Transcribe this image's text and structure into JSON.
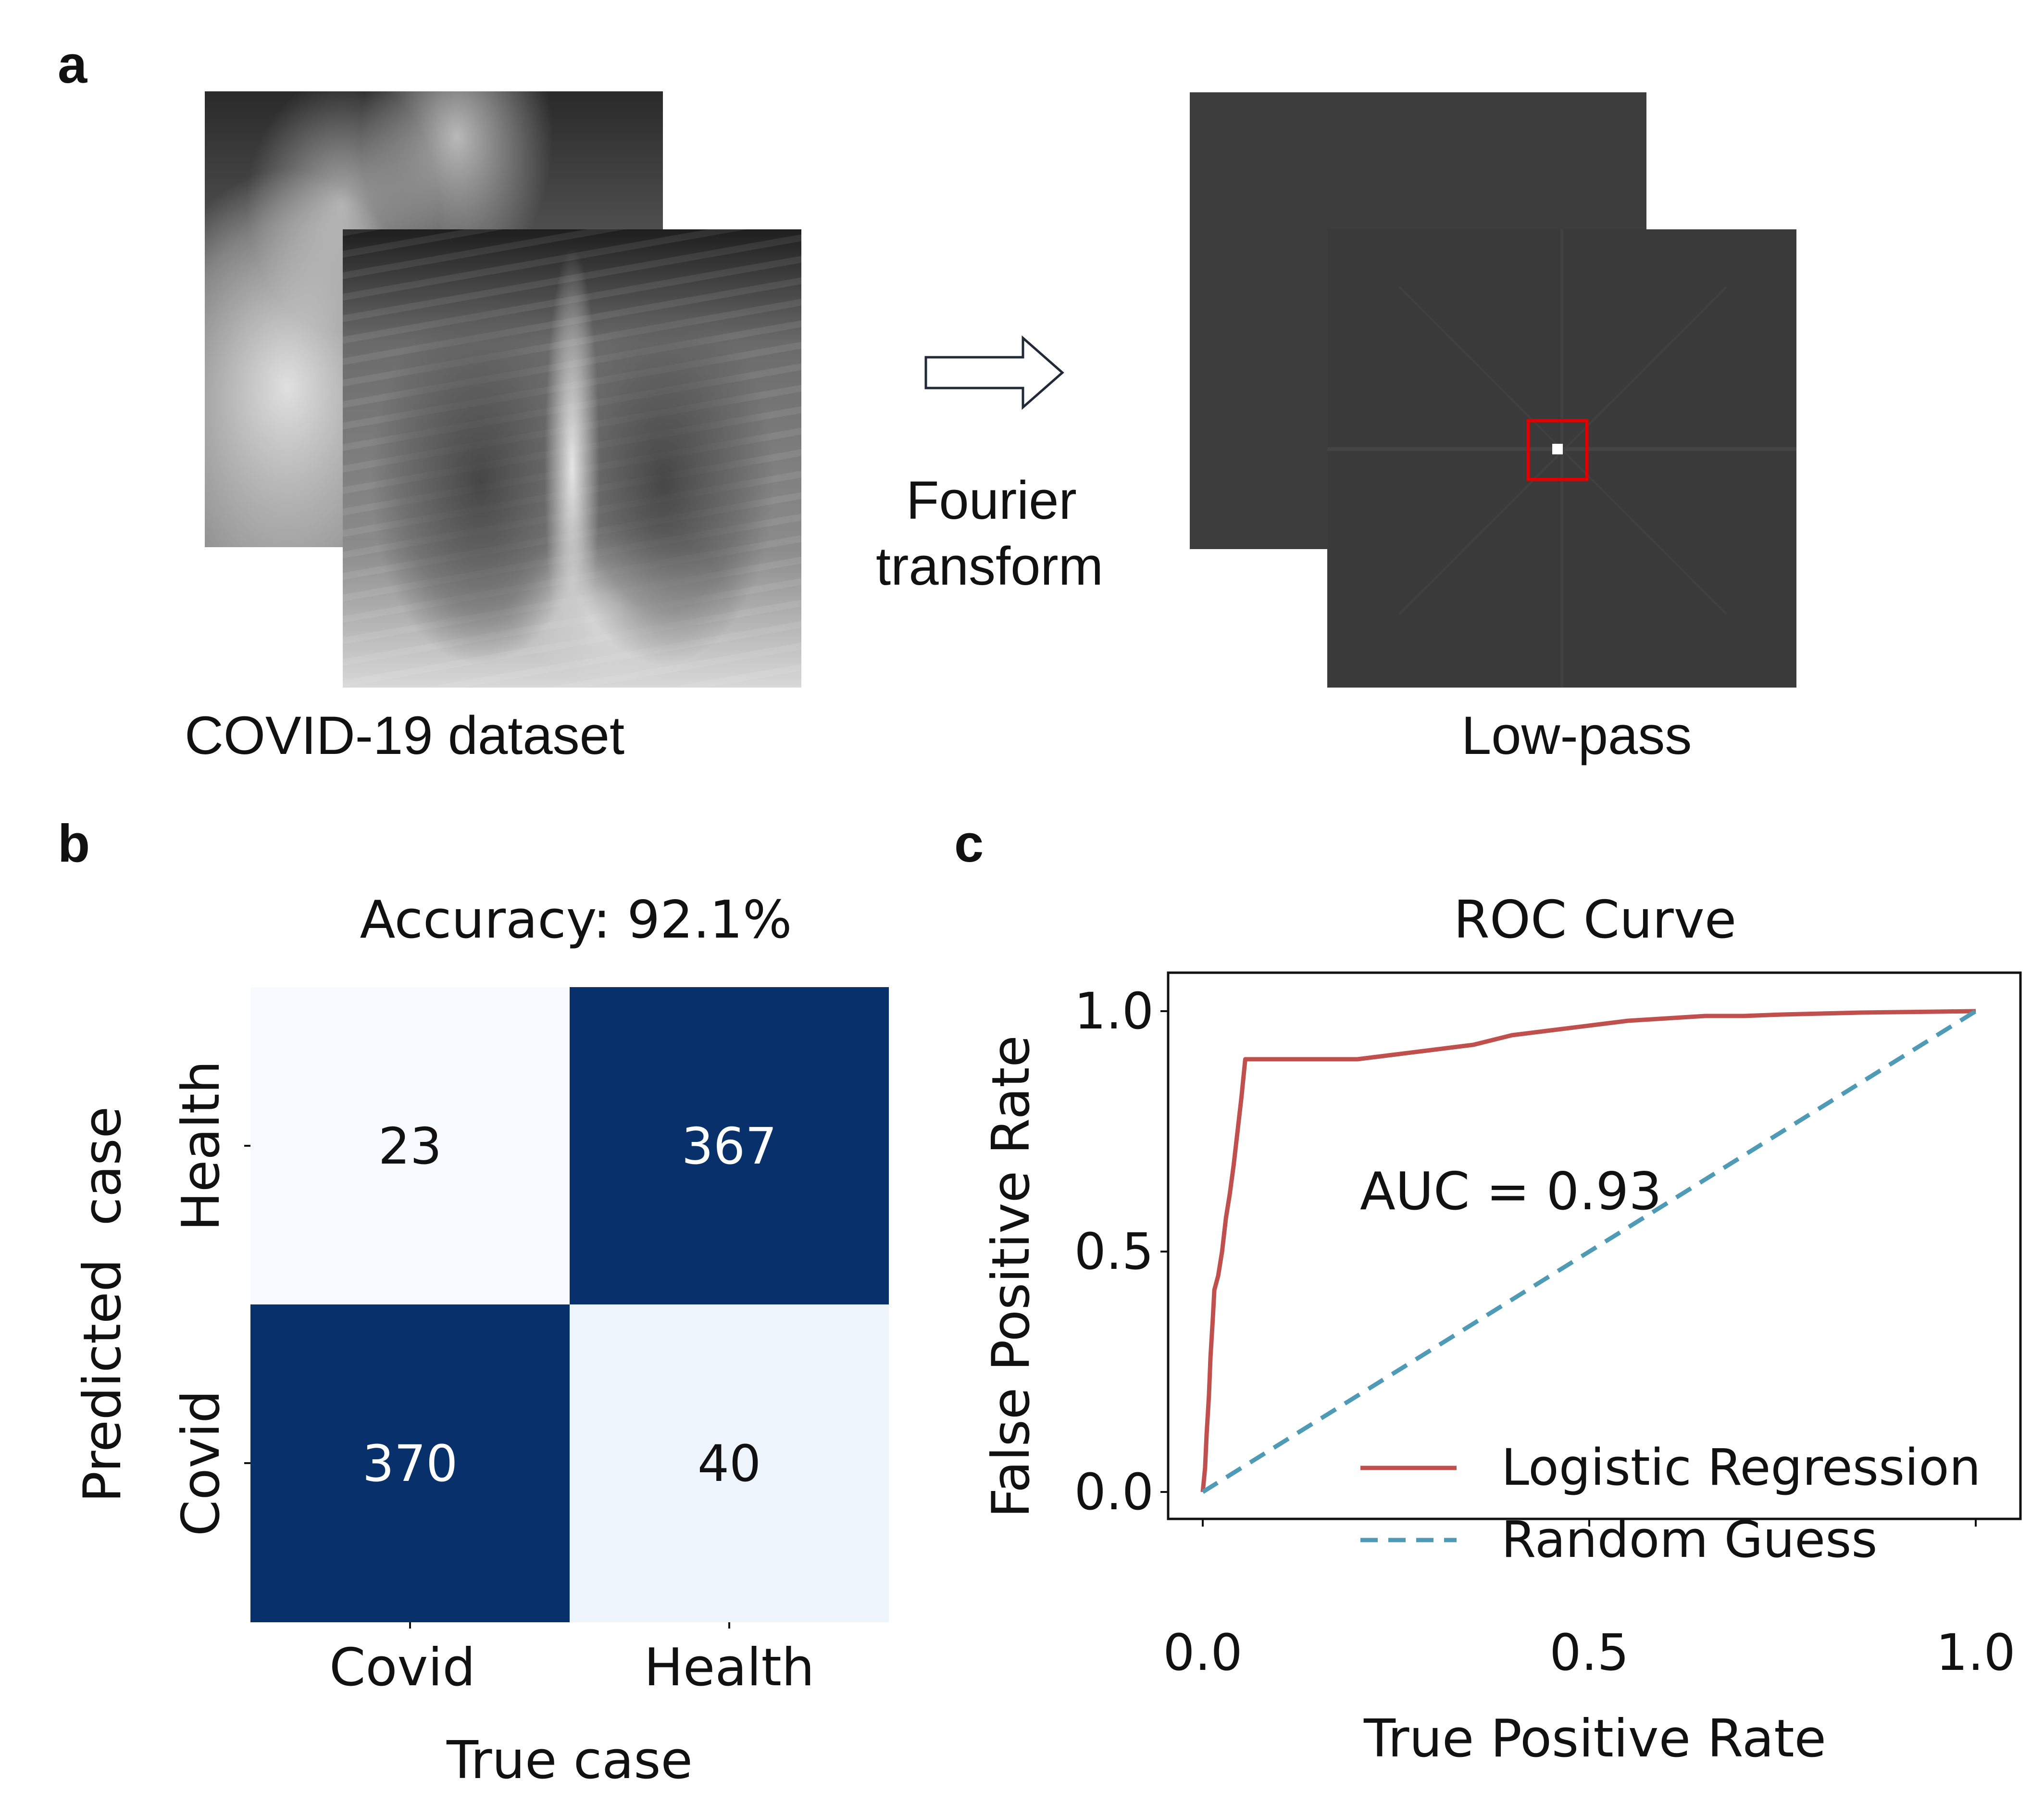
{
  "panels": {
    "a": {
      "letter": "a",
      "left_caption": "COVID-19 dataset",
      "arrow_label_line1": "Fourier",
      "arrow_label_line2": "transform",
      "right_caption": "Low-pass"
    },
    "b": {
      "letter": "b"
    },
    "c": {
      "letter": "c"
    }
  },
  "colors": {
    "heatmap_dark": "#08306b",
    "heatmap_light_1": "#f7fbff",
    "heatmap_light_2": "#eef4fc",
    "roc_line": "#c0504d",
    "random_line": "#4f9bb5",
    "fourier_bg": "#3d3d3d",
    "lowpass_box": "#e00000"
  },
  "chart_data": [
    {
      "type": "heatmap",
      "title": "Accuracy: 92.1%",
      "xlabel": "True case",
      "ylabel": "Predicted  case",
      "x_categories": [
        "Covid",
        "Health"
      ],
      "y_categories": [
        "Health",
        "Covid"
      ],
      "matrix": [
        [
          23,
          367
        ],
        [
          370,
          40
        ]
      ]
    },
    {
      "type": "line",
      "title": "ROC Curve",
      "xlabel": "True Positive Rate",
      "ylabel": "False Positive Rate",
      "xlim": [
        0.0,
        1.0
      ],
      "ylim": [
        0.0,
        1.0
      ],
      "xticks": [
        "0.0",
        "0.5",
        "1.0"
      ],
      "yticks": [
        "0.0",
        "0.5",
        "1.0"
      ],
      "annotation": "AUC = 0.93",
      "legend_position": "lower-right",
      "series": [
        {
          "name": "Logistic Regression",
          "style": "solid",
          "x": [
            0.0,
            0.003,
            0.005,
            0.008,
            0.01,
            0.013,
            0.015,
            0.02,
            0.025,
            0.03,
            0.035,
            0.04,
            0.045,
            0.05,
            0.055,
            0.06,
            0.1,
            0.15,
            0.2,
            0.25,
            0.3,
            0.35,
            0.4,
            0.45,
            0.5,
            0.55,
            0.6,
            0.65,
            0.7,
            0.75,
            0.8,
            0.85,
            0.9,
            0.95,
            1.0
          ],
          "y": [
            0.0,
            0.05,
            0.12,
            0.2,
            0.28,
            0.36,
            0.42,
            0.45,
            0.5,
            0.57,
            0.62,
            0.68,
            0.75,
            0.82,
            0.9,
            0.9,
            0.9,
            0.9,
            0.9,
            0.91,
            0.92,
            0.93,
            0.95,
            0.96,
            0.97,
            0.98,
            0.985,
            0.99,
            0.99,
            0.993,
            0.995,
            0.997,
            0.998,
            0.999,
            1.0
          ]
        },
        {
          "name": "Random Guess",
          "style": "dashed",
          "x": [
            0.0,
            1.0
          ],
          "y": [
            0.0,
            1.0
          ]
        }
      ]
    }
  ]
}
